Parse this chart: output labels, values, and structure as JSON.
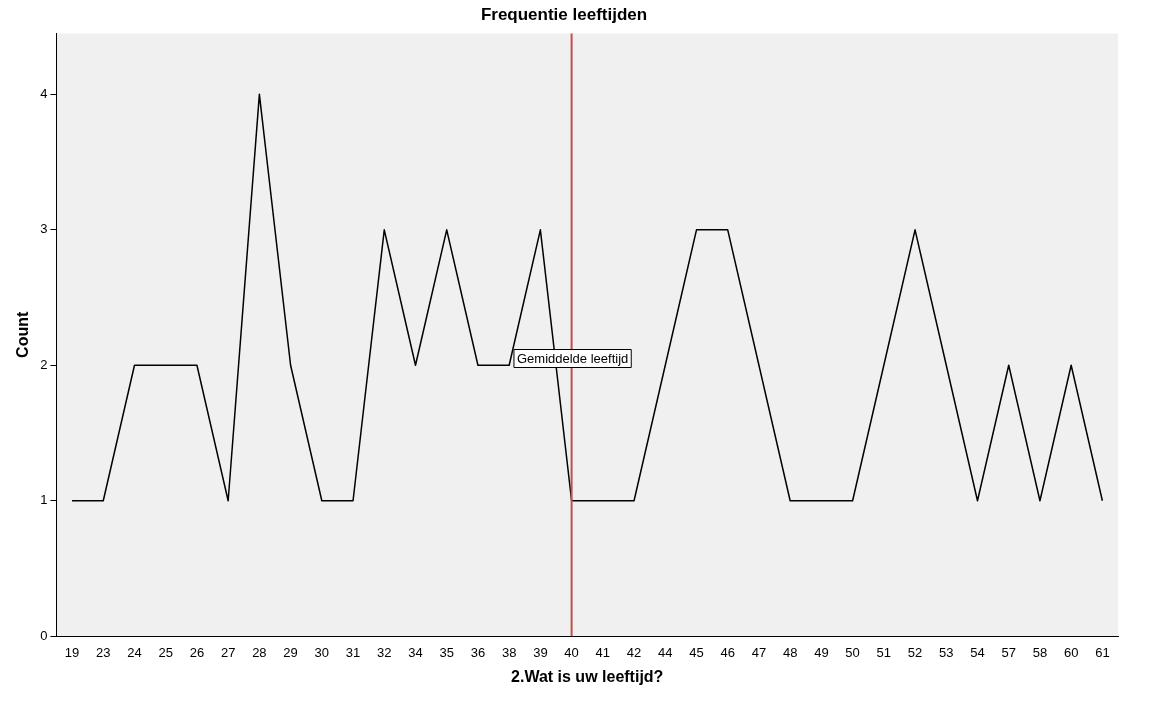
{
  "chart_data": {
    "type": "line",
    "title": "Frequentie leeftijden",
    "xlabel": "2.Wat is uw leeftijd?",
    "ylabel": "Count",
    "categories": [
      "19",
      "23",
      "24",
      "25",
      "26",
      "27",
      "28",
      "29",
      "30",
      "31",
      "32",
      "34",
      "35",
      "36",
      "38",
      "39",
      "40",
      "41",
      "42",
      "44",
      "45",
      "46",
      "47",
      "48",
      "49",
      "50",
      "51",
      "52",
      "53",
      "54",
      "57",
      "58",
      "60",
      "61"
    ],
    "values": [
      1,
      1,
      2,
      2,
      2,
      1,
      4,
      2,
      1,
      1,
      3,
      2,
      3,
      2,
      2,
      3,
      1,
      1,
      1,
      2,
      3,
      3,
      2,
      1,
      1,
      1,
      2,
      3,
      2,
      1,
      2,
      1,
      2,
      1
    ],
    "color": "#000000",
    "ylim": [
      0,
      4.45
    ],
    "yticks": [
      0,
      1,
      2,
      3,
      4
    ],
    "grid": false,
    "legend": false,
    "marker": "none",
    "line_style": "solid",
    "ref_lines": [
      {
        "axis": "x",
        "value": "40",
        "label": "Gemiddelde leeftijd",
        "color": "#c0504d"
      }
    ]
  }
}
